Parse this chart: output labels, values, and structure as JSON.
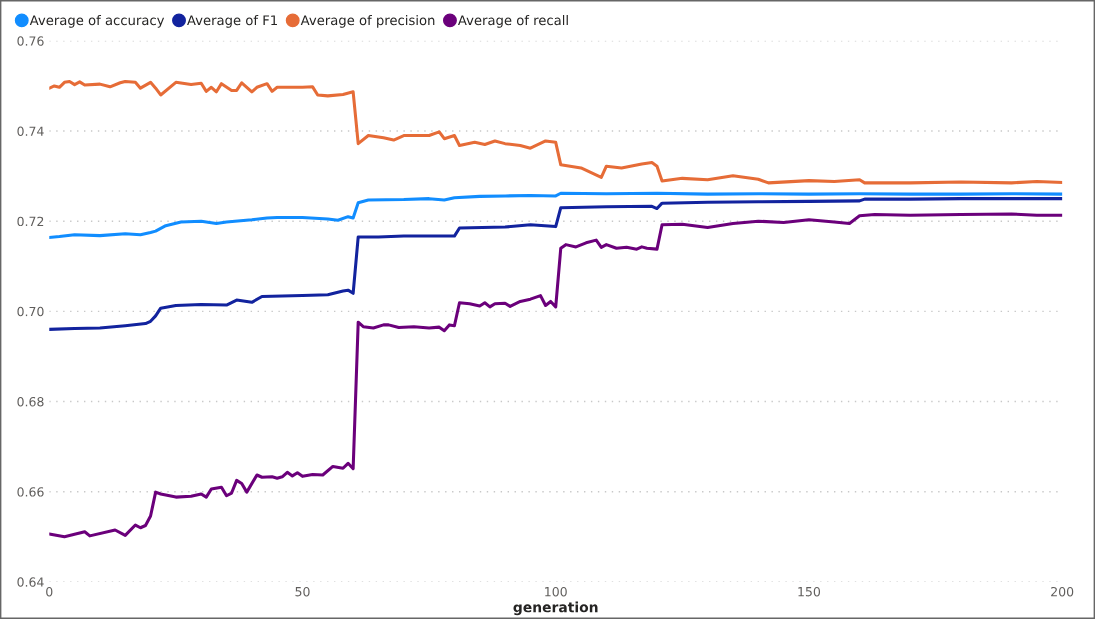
{
  "chart_data": {
    "type": "line",
    "xlabel": "generation",
    "xlim": [
      0,
      200
    ],
    "xticks": [
      0,
      50,
      100,
      150,
      200
    ],
    "ylim": [
      0.64,
      0.76
    ],
    "yticks": [
      0.64,
      0.66,
      0.68,
      {
        "value": 0.7,
        "label": "0.70"
      },
      0.72,
      0.74,
      0.76
    ],
    "grid": "y",
    "legend": "top left",
    "marker": "none",
    "line_style": "solid",
    "series": [
      {
        "name": "Average of accuracy",
        "color": "#118dff",
        "x": [
          0,
          2,
          5,
          10,
          15,
          18,
          20,
          21,
          23,
          26,
          30,
          33,
          35,
          40,
          43,
          45,
          50,
          55,
          57,
          59,
          60,
          61,
          63,
          70,
          75,
          78,
          80,
          85,
          90,
          95,
          100,
          101,
          110,
          120,
          130,
          140,
          150,
          160,
          170,
          180,
          190,
          200
        ],
        "values": [
          0.7164,
          0.7166,
          0.717,
          0.7168,
          0.7172,
          0.717,
          0.7175,
          0.7178,
          0.719,
          0.7198,
          0.72,
          0.7195,
          0.7198,
          0.7203,
          0.7207,
          0.7208,
          0.7208,
          0.7205,
          0.7202,
          0.721,
          0.7207,
          0.7241,
          0.7247,
          0.7248,
          0.725,
          0.7247,
          0.7252,
          0.7255,
          0.7256,
          0.7257,
          0.7256,
          0.7262,
          0.7261,
          0.7262,
          0.726,
          0.7261,
          0.726,
          0.7261,
          0.726,
          0.726,
          0.7261,
          0.726
        ]
      },
      {
        "name": "Average of F1",
        "color": "#12239e",
        "x": [
          0,
          5,
          10,
          15,
          19,
          20,
          21,
          22,
          25,
          30,
          35,
          37,
          40,
          42,
          50,
          55,
          58,
          59,
          60,
          61,
          65,
          70,
          80,
          81,
          90,
          95,
          100,
          101,
          110,
          119,
          120,
          121,
          130,
          140,
          150,
          160,
          161,
          170,
          180,
          190,
          200
        ],
        "values": [
          0.696,
          0.6962,
          0.6963,
          0.6968,
          0.6973,
          0.6978,
          0.699,
          0.7007,
          0.7013,
          0.7015,
          0.7014,
          0.7025,
          0.702,
          0.7033,
          0.7035,
          0.7037,
          0.7045,
          0.7047,
          0.704,
          0.7165,
          0.7165,
          0.7167,
          0.7167,
          0.7185,
          0.7187,
          0.7192,
          0.7188,
          0.723,
          0.7232,
          0.7233,
          0.7228,
          0.724,
          0.7242,
          0.7243,
          0.7244,
          0.7245,
          0.7249,
          0.7249,
          0.725,
          0.725,
          0.725
        ]
      },
      {
        "name": "Average of precision",
        "color": "#e66c37",
        "x": [
          0,
          1,
          2,
          3,
          4,
          5,
          6,
          7,
          10,
          12,
          14,
          15,
          17,
          18,
          20,
          21,
          22,
          25,
          28,
          30,
          31,
          32,
          33,
          34,
          36,
          37,
          38,
          40,
          41,
          43,
          44,
          45,
          50,
          52,
          53,
          55,
          58,
          60,
          61,
          63,
          66,
          68,
          70,
          75,
          77,
          78,
          80,
          81,
          84,
          86,
          88,
          90,
          93,
          95,
          98,
          100,
          101,
          105,
          109,
          110,
          113,
          117,
          119,
          120,
          121,
          125,
          130,
          135,
          140,
          142,
          150,
          155,
          160,
          161,
          170,
          180,
          190,
          195,
          200
        ],
        "values": [
          0.7495,
          0.75,
          0.7497,
          0.7508,
          0.751,
          0.7503,
          0.7509,
          0.7502,
          0.7504,
          0.7498,
          0.7507,
          0.751,
          0.7508,
          0.7495,
          0.7508,
          0.7495,
          0.748,
          0.7508,
          0.7503,
          0.7506,
          0.7488,
          0.7497,
          0.7487,
          0.7505,
          0.749,
          0.749,
          0.7507,
          0.7487,
          0.7497,
          0.7505,
          0.7488,
          0.7497,
          0.7497,
          0.7498,
          0.748,
          0.7478,
          0.7481,
          0.7487,
          0.7372,
          0.739,
          0.7385,
          0.738,
          0.739,
          0.739,
          0.7398,
          0.7383,
          0.739,
          0.7368,
          0.7375,
          0.737,
          0.7378,
          0.7372,
          0.7368,
          0.7362,
          0.7378,
          0.7375,
          0.7325,
          0.7318,
          0.7297,
          0.7322,
          0.7318,
          0.7327,
          0.733,
          0.7322,
          0.7289,
          0.7295,
          0.7292,
          0.7301,
          0.7293,
          0.7285,
          0.729,
          0.7288,
          0.7292,
          0.7285,
          0.7285,
          0.7287,
          0.7285,
          0.7288,
          0.7286
        ]
      },
      {
        "name": "Average of recall",
        "color": "#6b007b",
        "x": [
          0,
          3,
          7,
          8,
          13,
          15,
          17,
          18,
          19,
          20,
          21,
          22,
          25,
          28,
          30,
          31,
          32,
          34,
          35,
          36,
          37,
          38,
          39,
          41,
          42,
          44,
          45,
          46,
          47,
          48,
          49,
          50,
          52,
          54,
          56,
          58,
          59,
          60,
          61,
          62,
          64,
          66,
          67,
          69,
          72,
          75,
          77,
          78,
          79,
          80,
          81,
          83,
          85,
          86,
          87,
          88,
          90,
          91,
          93,
          95,
          97,
          98,
          99,
          100,
          101,
          102,
          104,
          106,
          108,
          109,
          110,
          112,
          114,
          116,
          117,
          118,
          120,
          121,
          125,
          130,
          135,
          140,
          145,
          150,
          155,
          158,
          160,
          163,
          170,
          180,
          190,
          195,
          200
        ],
        "values": [
          0.6506,
          0.65,
          0.6511,
          0.6502,
          0.6515,
          0.6503,
          0.6526,
          0.652,
          0.6525,
          0.6546,
          0.6599,
          0.6595,
          0.6588,
          0.659,
          0.6595,
          0.6588,
          0.6606,
          0.661,
          0.6591,
          0.6597,
          0.6625,
          0.6618,
          0.6599,
          0.6637,
          0.6632,
          0.6633,
          0.663,
          0.6633,
          0.6643,
          0.6635,
          0.6642,
          0.6634,
          0.6638,
          0.6637,
          0.6656,
          0.6652,
          0.6663,
          0.6651,
          0.6976,
          0.6966,
          0.6963,
          0.697,
          0.697,
          0.6964,
          0.6966,
          0.6963,
          0.6965,
          0.6957,
          0.697,
          0.6968,
          0.7019,
          0.7017,
          0.7012,
          0.7019,
          0.701,
          0.7017,
          0.7018,
          0.7011,
          0.7022,
          0.7027,
          0.7035,
          0.7013,
          0.7022,
          0.701,
          0.714,
          0.7148,
          0.7143,
          0.7152,
          0.7158,
          0.7142,
          0.7148,
          0.714,
          0.7142,
          0.7138,
          0.7143,
          0.714,
          0.7138,
          0.7192,
          0.7193,
          0.7186,
          0.7195,
          0.72,
          0.7197,
          0.7203,
          0.7198,
          0.7195,
          0.7212,
          0.7215,
          0.7213,
          0.7215,
          0.7216,
          0.7213,
          0.7213
        ]
      }
    ]
  }
}
